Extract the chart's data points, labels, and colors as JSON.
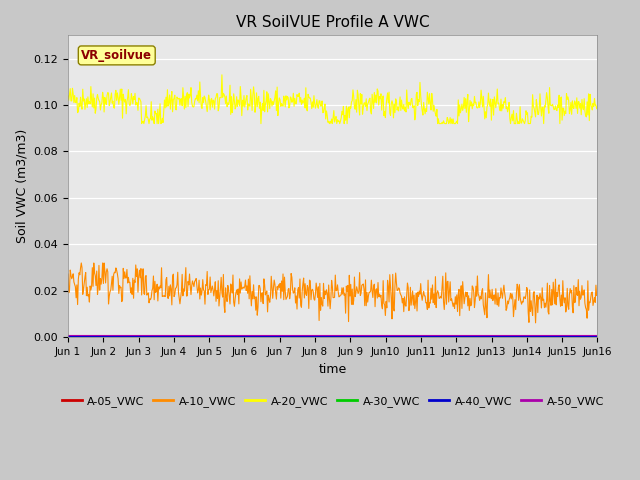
{
  "title": "VR SoilVUE Profile A VWC",
  "xlabel": "time",
  "ylabel": "Soil VWC (m3/m3)",
  "ylim": [
    0.0,
    0.13
  ],
  "yticks": [
    0.0,
    0.02,
    0.04,
    0.06,
    0.08,
    0.1,
    0.12
  ],
  "xlim": [
    0,
    15
  ],
  "n_points": 720,
  "fig_bg": "#c8c8c8",
  "plot_bg": "#e8e8e8",
  "legend_entries": [
    {
      "label": "A-05_VWC",
      "color": "#cc0000"
    },
    {
      "label": "A-10_VWC",
      "color": "#ff8c00"
    },
    {
      "label": "A-20_VWC",
      "color": "#ffff00"
    },
    {
      "label": "A-30_VWC",
      "color": "#00cc00"
    },
    {
      "label": "A-40_VWC",
      "color": "#0000cc"
    },
    {
      "label": "A-50_VWC",
      "color": "#aa00aa"
    }
  ],
  "station_label": "VR_soilvue",
  "station_label_color": "#8b0000",
  "station_label_bg": "#ffff99",
  "station_label_border": "#8b8000",
  "xtick_labels": [
    "Jun 1",
    "Jun 2",
    "Jun 3",
    "Jun 4",
    "Jun 5",
    "Jun 6",
    "Jun 7",
    "Jun 8",
    "Jun 9",
    "Jun10",
    "Jun11",
    "Jun12",
    "Jun13",
    "Jun14",
    "Jun15",
    "Jun16"
  ]
}
